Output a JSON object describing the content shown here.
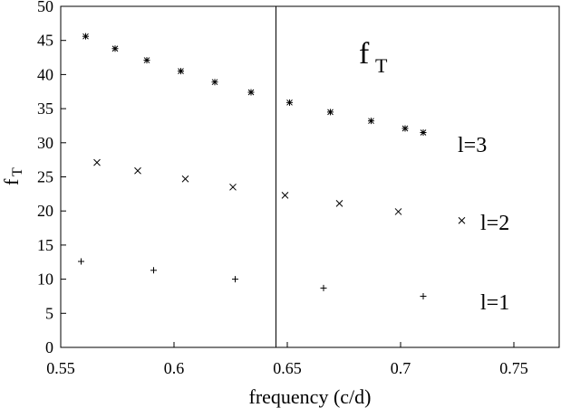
{
  "chart_data": {
    "type": "scatter",
    "title": "f",
    "title_subscript": "T",
    "xlabel": "frequency (c/d)",
    "ylabel": "f",
    "ylabel_subscript": "T",
    "xlim": [
      0.55,
      0.77
    ],
    "ylim": [
      0,
      50
    ],
    "x_ticks": [
      0.55,
      0.6,
      0.65,
      0.7,
      0.75
    ],
    "x_tick_labels": [
      "0.55",
      "0.6",
      "0.65",
      "0.7",
      "0.75"
    ],
    "y_ticks": [
      0,
      5,
      10,
      15,
      20,
      25,
      30,
      35,
      40,
      45,
      50
    ],
    "y_tick_labels": [
      "0",
      "5",
      "10",
      "15",
      "20",
      "25",
      "30",
      "35",
      "40",
      "45",
      "50"
    ],
    "vertical_line_x": 0.645,
    "grid": false,
    "series": [
      {
        "name": "l=1",
        "marker": "plus",
        "points": [
          {
            "x": 0.559,
            "y": 12.6
          },
          {
            "x": 0.591,
            "y": 11.3
          },
          {
            "x": 0.627,
            "y": 10.0
          },
          {
            "x": 0.666,
            "y": 8.7
          },
          {
            "x": 0.71,
            "y": 7.5
          }
        ]
      },
      {
        "name": "l=2",
        "marker": "cross",
        "points": [
          {
            "x": 0.566,
            "y": 27.1
          },
          {
            "x": 0.584,
            "y": 25.9
          },
          {
            "x": 0.605,
            "y": 24.7
          },
          {
            "x": 0.626,
            "y": 23.5
          },
          {
            "x": 0.649,
            "y": 22.3
          },
          {
            "x": 0.673,
            "y": 21.1
          },
          {
            "x": 0.699,
            "y": 19.9
          },
          {
            "x": 0.727,
            "y": 18.6
          }
        ]
      },
      {
        "name": "l=3",
        "marker": "star",
        "points": [
          {
            "x": 0.561,
            "y": 45.6
          },
          {
            "x": 0.574,
            "y": 43.8
          },
          {
            "x": 0.588,
            "y": 42.1
          },
          {
            "x": 0.603,
            "y": 40.5
          },
          {
            "x": 0.618,
            "y": 38.9
          },
          {
            "x": 0.634,
            "y": 37.4
          },
          {
            "x": 0.651,
            "y": 35.9
          },
          {
            "x": 0.669,
            "y": 34.5
          },
          {
            "x": 0.687,
            "y": 33.2
          },
          {
            "x": 0.702,
            "y": 32.1
          },
          {
            "x": 0.71,
            "y": 31.5
          }
        ]
      }
    ],
    "annotations": [
      "l=3",
      "l=2",
      "l=1"
    ]
  }
}
